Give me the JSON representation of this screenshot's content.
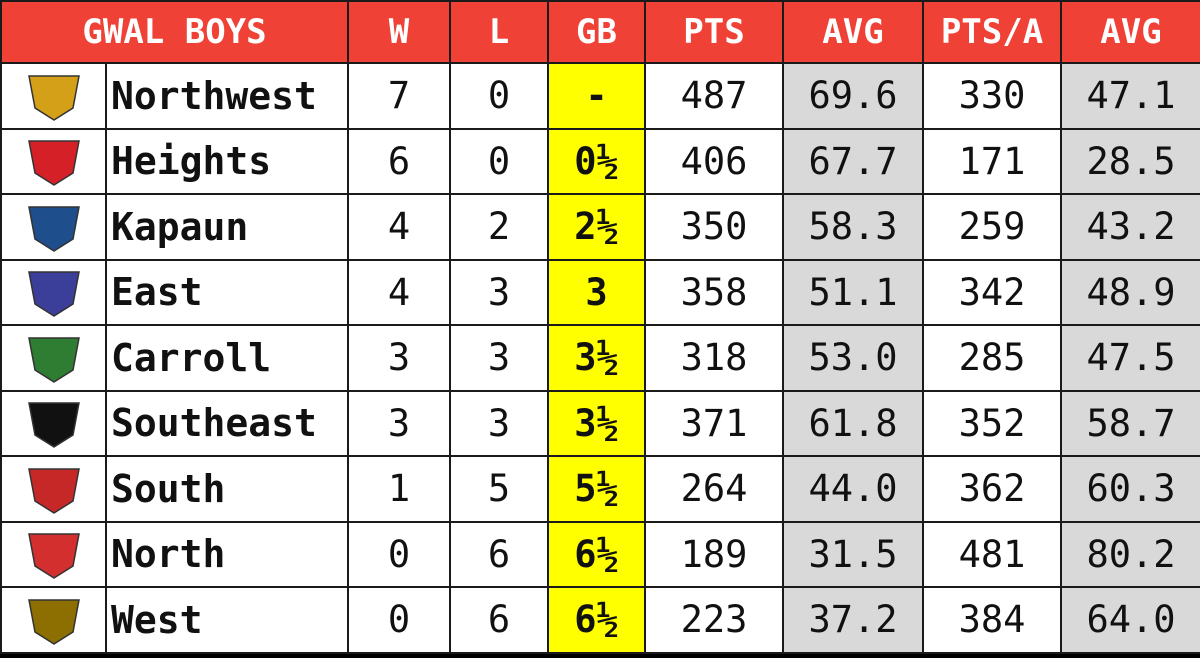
{
  "header": {
    "title": "GWAL BOYS",
    "columns": [
      "W",
      "L",
      "GB",
      "PTS",
      "AVG",
      "PTS/A",
      "AVG"
    ]
  },
  "rows": [
    {
      "team": "Northwest",
      "w": 7,
      "l": 0,
      "gb": "-",
      "pts": 487,
      "avg": "69.6",
      "pts_allowed": 330,
      "avg_allowed": "47.1"
    },
    {
      "team": "Heights",
      "w": 6,
      "l": 0,
      "gb": "0½",
      "pts": 406,
      "avg": "67.7",
      "pts_allowed": 171,
      "avg_allowed": "28.5"
    },
    {
      "team": "Kapaun",
      "w": 4,
      "l": 2,
      "gb": "2½",
      "pts": 350,
      "avg": "58.3",
      "pts_allowed": 259,
      "avg_allowed": "43.2"
    },
    {
      "team": "East",
      "w": 4,
      "l": 3,
      "gb": "3",
      "pts": 358,
      "avg": "51.1",
      "pts_allowed": 342,
      "avg_allowed": "48.9"
    },
    {
      "team": "Carroll",
      "w": 3,
      "l": 3,
      "gb": "3½",
      "pts": 318,
      "avg": "53.0",
      "pts_allowed": 285,
      "avg_allowed": "47.5"
    },
    {
      "team": "Southeast",
      "w": 3,
      "l": 3,
      "gb": "3½",
      "pts": 371,
      "avg": "61.8",
      "pts_allowed": 352,
      "avg_allowed": "58.7"
    },
    {
      "team": "South",
      "w": 1,
      "l": 5,
      "gb": "5½",
      "pts": 264,
      "avg": "44.0",
      "pts_allowed": 362,
      "avg_allowed": "60.3"
    },
    {
      "team": "North",
      "w": 0,
      "l": 6,
      "gb": "6½",
      "pts": 189,
      "avg": "31.5",
      "pts_allowed": 481,
      "avg_allowed": "80.2"
    },
    {
      "team": "West",
      "w": 0,
      "l": 6,
      "gb": "6½",
      "pts": 223,
      "avg": "37.2",
      "pts_allowed": 384,
      "avg_allowed": "64.0"
    }
  ]
}
